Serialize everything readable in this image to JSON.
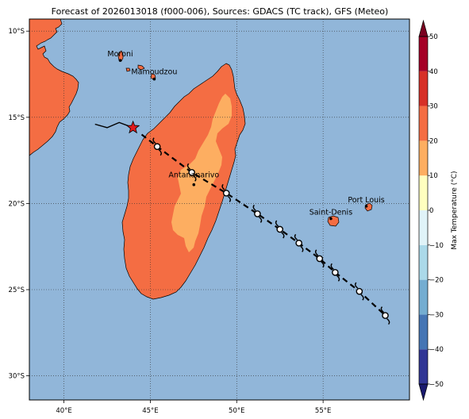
{
  "title": "Forecast of 2026013018 (f000-006), Sources: GDACS (TC track), GFS (Meteo)",
  "map": {
    "lon_range": [
      38,
      60
    ],
    "lat_range": [
      -31.4,
      -9.3
    ],
    "lon_ticks": [
      {
        "value": 40,
        "label": "40°E"
      },
      {
        "value": 45,
        "label": "45°E"
      },
      {
        "value": 50,
        "label": "50°E"
      },
      {
        "value": 55,
        "label": "55°E"
      }
    ],
    "lat_ticks": [
      {
        "value": -10,
        "label": "10°S"
      },
      {
        "value": -15,
        "label": "15°S"
      },
      {
        "value": -20,
        "label": "20°S"
      },
      {
        "value": -25,
        "label": "25°S"
      },
      {
        "value": -30,
        "label": "30°S"
      }
    ],
    "grid": true,
    "colors": {
      "ocean": "#91b6d9",
      "land_warm": "#f46d43",
      "land_mild": "#fdae61",
      "coast": "#000000"
    }
  },
  "cities": [
    {
      "name": "Moroni",
      "lon": 43.26,
      "lat": -11.7
    },
    {
      "name": "Mamoudzou",
      "lon": 45.23,
      "lat": -12.78
    },
    {
      "name": "Antananarivo",
      "lon": 47.52,
      "lat": -18.91
    },
    {
      "name": "Saint-Denis",
      "lon": 55.45,
      "lat": -20.88
    },
    {
      "name": "Port Louis",
      "lon": 57.5,
      "lat": -20.16
    }
  ],
  "tc_track": {
    "observed": [
      {
        "lon": 41.8,
        "lat": -15.4
      },
      {
        "lon": 42.5,
        "lat": -15.6
      },
      {
        "lon": 43.2,
        "lat": -15.3
      },
      {
        "lon": 44.0,
        "lat": -15.6
      }
    ],
    "current_position": {
      "lon": 44.0,
      "lat": -15.6
    },
    "forecast": [
      {
        "lon": 44.5,
        "lat": -16.0
      },
      {
        "lon": 45.4,
        "lat": -16.7
      },
      {
        "lon": 47.4,
        "lat": -18.2
      },
      {
        "lon": 49.4,
        "lat": -19.4
      },
      {
        "lon": 51.2,
        "lat": -20.6
      },
      {
        "lon": 52.5,
        "lat": -21.5
      },
      {
        "lon": 53.6,
        "lat": -22.3
      },
      {
        "lon": 54.8,
        "lat": -23.2
      },
      {
        "lon": 55.7,
        "lat": -24.0
      },
      {
        "lon": 57.1,
        "lat": -25.1
      },
      {
        "lon": 58.6,
        "lat": -26.5
      }
    ],
    "symbol_points": [
      {
        "lon": 45.4,
        "lat": -16.7
      },
      {
        "lon": 47.4,
        "lat": -18.2
      },
      {
        "lon": 49.4,
        "lat": -19.4
      },
      {
        "lon": 51.2,
        "lat": -20.6
      },
      {
        "lon": 52.5,
        "lat": -21.5
      },
      {
        "lon": 53.6,
        "lat": -22.3
      },
      {
        "lon": 54.8,
        "lat": -23.2
      },
      {
        "lon": 55.7,
        "lat": -24.0
      },
      {
        "lon": 57.1,
        "lat": -25.1
      },
      {
        "lon": 58.6,
        "lat": -26.5
      }
    ],
    "line_color": "#000000",
    "star_color": "#e41a1c"
  },
  "colorbar": {
    "label": "Max Temperature (°C)",
    "min": -50,
    "max": 50,
    "ticks": [
      {
        "value": 50,
        "label": "50"
      },
      {
        "value": 40,
        "label": "40"
      },
      {
        "value": 30,
        "label": "30"
      },
      {
        "value": 20,
        "label": "20"
      },
      {
        "value": 10,
        "label": "10"
      },
      {
        "value": 0,
        "label": "0"
      },
      {
        "value": -10,
        "label": "−10"
      },
      {
        "value": -20,
        "label": "−20"
      },
      {
        "value": -30,
        "label": "−30"
      },
      {
        "value": -40,
        "label": "−40"
      },
      {
        "value": -50,
        "label": "−50"
      }
    ],
    "bins": [
      {
        "from": -50,
        "to": -40,
        "color": "#313695"
      },
      {
        "from": -40,
        "to": -30,
        "color": "#4575b4"
      },
      {
        "from": -30,
        "to": -20,
        "color": "#74add1"
      },
      {
        "from": -20,
        "to": -10,
        "color": "#abd9e9"
      },
      {
        "from": -10,
        "to": 0,
        "color": "#e0f3f8"
      },
      {
        "from": 0,
        "to": 10,
        "color": "#ffffbf"
      },
      {
        "from": 10,
        "to": 20,
        "color": "#fdae61"
      },
      {
        "from": 20,
        "to": 30,
        "color": "#f46d43"
      },
      {
        "from": 30,
        "to": 40,
        "color": "#d73027"
      },
      {
        "from": 40,
        "to": 50,
        "color": "#a50026"
      }
    ],
    "extend_low_color": "#1a1a6e",
    "extend_high_color": "#7a0020"
  }
}
